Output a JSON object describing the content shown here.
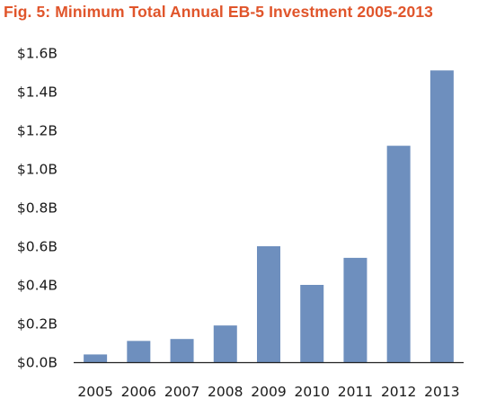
{
  "figure": {
    "title": "Fig. 5: Minimum Total Annual EB-5 Investment 2005-2013"
  },
  "colors": {
    "title": "#e0552b",
    "bar": "#6e8fbe",
    "axis": "#222222"
  },
  "chart_data": {
    "type": "bar",
    "title": "Fig. 5: Minimum Total Annual EB-5 Investment 2005-2013",
    "xlabel": "",
    "ylabel": "",
    "categories": [
      "2005",
      "2006",
      "2007",
      "2008",
      "2009",
      "2010",
      "2011",
      "2012",
      "2013"
    ],
    "values": [
      0.04,
      0.11,
      0.12,
      0.19,
      0.6,
      0.4,
      0.54,
      1.12,
      1.51
    ],
    "value_unit": "billion USD",
    "ylim": [
      0,
      1.6
    ],
    "yticks": [
      0,
      0.2,
      0.4,
      0.6,
      0.8,
      1.0,
      1.2,
      1.4,
      1.6
    ],
    "ytick_labels": [
      "$0.0B",
      "$0.2B",
      "$0.4B",
      "$0.6B",
      "$0.8B",
      "$1.0B",
      "$1.2B",
      "$1.4B",
      "$1.6B"
    ],
    "grid": false,
    "legend": "none"
  }
}
